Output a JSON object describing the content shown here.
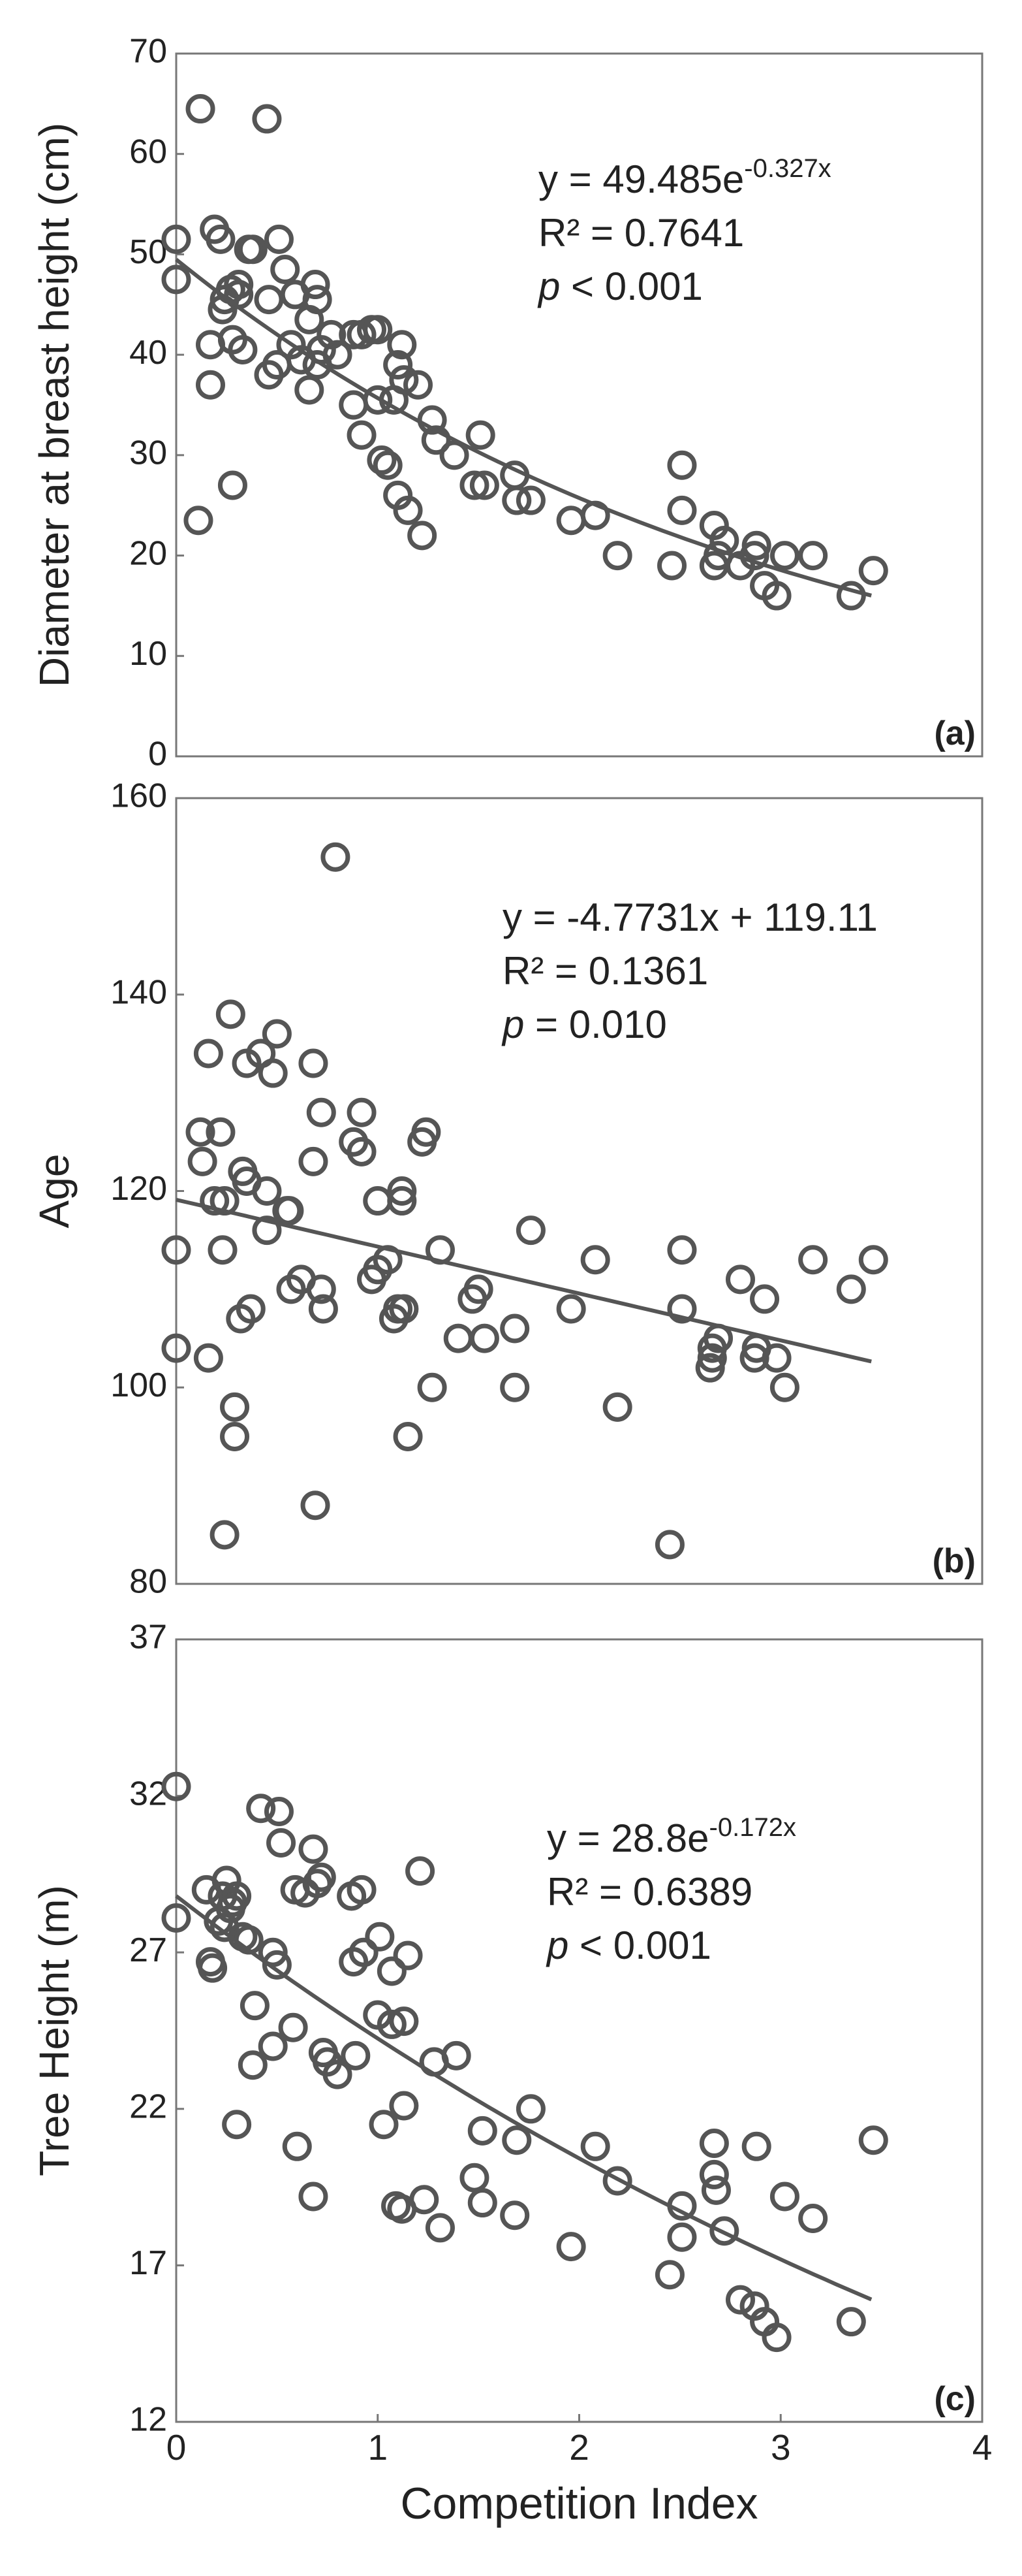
{
  "chart_data": [
    {
      "type": "scatter",
      "panel_label": "(a)",
      "ylabel": "Diameter at breast height (cm)",
      "xlim": [
        0,
        4
      ],
      "ylim": [
        0,
        70
      ],
      "yticks": [
        0,
        10,
        20,
        30,
        40,
        50,
        60,
        70
      ],
      "color": "#555555",
      "fit": {
        "kind": "exp",
        "a": 49.485,
        "b": -0.327,
        "xrange": [
          0,
          3.45
        ]
      },
      "equation": {
        "text": "y = 49.485e",
        "sup": "-0.327x"
      },
      "r2": "R² = 0.7641",
      "p": {
        "symbol": "p",
        "text": " < 0.001"
      },
      "x": [
        0.0,
        0.0,
        0.12,
        0.11,
        0.17,
        0.17,
        0.19,
        0.22,
        0.23,
        0.24,
        0.27,
        0.28,
        0.28,
        0.31,
        0.31,
        0.33,
        0.36,
        0.38,
        0.45,
        0.46,
        0.46,
        0.5,
        0.51,
        0.54,
        0.57,
        0.59,
        0.62,
        0.66,
        0.66,
        0.69,
        0.7,
        0.7,
        0.72,
        0.77,
        0.8,
        0.88,
        0.88,
        0.92,
        0.92,
        0.97,
        1.0,
        1.0,
        1.02,
        1.05,
        1.08,
        1.1,
        1.1,
        1.12,
        1.13,
        1.15,
        1.2,
        1.22,
        1.27,
        1.29,
        1.38,
        1.48,
        1.51,
        1.53,
        1.68,
        1.69,
        1.76,
        1.96,
        2.08,
        2.19,
        2.46,
        2.51,
        2.51,
        2.67,
        2.67,
        2.69,
        2.72,
        2.8,
        2.87,
        2.88,
        2.92,
        2.98,
        3.02,
        3.16,
        3.35,
        3.46
      ],
      "values": [
        51.5,
        47.5,
        64.5,
        23.5,
        41,
        37,
        52.5,
        51.5,
        44.5,
        45.5,
        46.5,
        27,
        41.5,
        47,
        46,
        40.5,
        50.5,
        50.5,
        63.5,
        45.5,
        38,
        39,
        51.5,
        48.5,
        41,
        46,
        39.5,
        43.5,
        36.5,
        47,
        45.5,
        39,
        40.5,
        42,
        40,
        35,
        42,
        32,
        42,
        42.5,
        35.5,
        42.5,
        29.5,
        29,
        35.5,
        26,
        39,
        41,
        37.5,
        24.5,
        37,
        22,
        33.5,
        31.5,
        30,
        27,
        32,
        27,
        28,
        25.5,
        25.5,
        23.5,
        24,
        20,
        19,
        29,
        24.5,
        23,
        19,
        20,
        21.5,
        19,
        20,
        21,
        17,
        16,
        20,
        20,
        16,
        18.5
      ]
    },
    {
      "type": "scatter",
      "panel_label": "(b)",
      "ylabel": "Age",
      "xlim": [
        0,
        4
      ],
      "ylim": [
        80,
        160
      ],
      "yticks": [
        80,
        100,
        120,
        140,
        160
      ],
      "color": "#555555",
      "fit": {
        "kind": "linear",
        "a": 119.11,
        "b": -4.7731,
        "xrange": [
          0,
          3.45
        ]
      },
      "equation": {
        "text": "y = -4.7731x + 119.11"
      },
      "r2": "R² = 0.1361",
      "p": {
        "symbol": "p",
        "text": " = 0.010"
      },
      "x": [
        0.0,
        0.0,
        0.12,
        0.13,
        0.16,
        0.16,
        0.19,
        0.22,
        0.23,
        0.24,
        0.24,
        0.27,
        0.29,
        0.29,
        0.32,
        0.33,
        0.35,
        0.35,
        0.37,
        0.42,
        0.45,
        0.45,
        0.48,
        0.5,
        0.55,
        0.56,
        0.57,
        0.62,
        0.68,
        0.68,
        0.69,
        0.72,
        0.72,
        0.73,
        0.79,
        0.88,
        0.92,
        0.92,
        0.97,
        1.0,
        1.0,
        1.05,
        1.08,
        1.1,
        1.12,
        1.12,
        1.13,
        1.15,
        1.22,
        1.24,
        1.27,
        1.31,
        1.4,
        1.47,
        1.5,
        1.53,
        1.68,
        1.68,
        1.76,
        1.96,
        2.08,
        2.19,
        2.45,
        2.51,
        2.51,
        2.65,
        2.66,
        2.66,
        2.69,
        2.8,
        2.87,
        2.88,
        2.92,
        2.98,
        3.02,
        3.16,
        3.35,
        3.46
      ],
      "values": [
        114,
        104,
        126,
        123,
        134,
        103,
        119,
        126,
        114,
        119,
        85,
        138,
        98,
        95,
        107,
        122,
        121,
        133,
        108,
        134,
        116,
        120,
        132,
        136,
        118,
        118,
        110,
        111,
        133,
        123,
        88,
        128,
        110,
        108,
        154,
        125,
        124,
        128,
        111,
        112,
        119,
        113,
        107,
        108,
        120,
        119,
        108,
        95,
        125,
        126,
        100,
        114,
        105,
        109,
        110,
        105,
        100,
        106,
        116,
        108,
        113,
        98,
        84,
        108,
        114,
        102,
        103,
        104,
        105,
        111,
        103,
        104,
        109,
        103,
        100,
        113,
        110,
        113
      ]
    },
    {
      "type": "scatter",
      "panel_label": "(c)",
      "ylabel": "Tree Height (m)",
      "xlabel": "Competition Index",
      "xlim": [
        0,
        4
      ],
      "xticks": [
        0,
        1,
        2,
        3,
        4
      ],
      "ylim": [
        12,
        37
      ],
      "yticks": [
        12,
        17,
        22,
        27,
        32,
        37
      ],
      "color": "#555555",
      "fit": {
        "kind": "exp",
        "a": 28.8,
        "b": -0.172,
        "xrange": [
          0,
          3.45
        ]
      },
      "equation": {
        "text": "y = 28.8e",
        "sup": "-0.172x"
      },
      "r2": "R² = 0.6389",
      "p": {
        "symbol": "p",
        "text": " < 0.001"
      },
      "x": [
        0.0,
        0.0,
        0.15,
        0.17,
        0.18,
        0.21,
        0.23,
        0.24,
        0.25,
        0.27,
        0.28,
        0.3,
        0.3,
        0.33,
        0.36,
        0.38,
        0.39,
        0.42,
        0.48,
        0.48,
        0.5,
        0.51,
        0.52,
        0.58,
        0.59,
        0.6,
        0.64,
        0.68,
        0.68,
        0.7,
        0.72,
        0.73,
        0.75,
        0.8,
        0.87,
        0.88,
        0.89,
        0.92,
        0.93,
        1.0,
        1.01,
        1.03,
        1.07,
        1.07,
        1.09,
        1.12,
        1.13,
        1.13,
        1.15,
        1.21,
        1.23,
        1.28,
        1.31,
        1.39,
        1.48,
        1.52,
        1.52,
        1.68,
        1.69,
        1.76,
        1.96,
        2.08,
        2.19,
        2.45,
        2.51,
        2.51,
        2.67,
        2.67,
        2.68,
        2.72,
        2.8,
        2.87,
        2.88,
        2.92,
        2.98,
        3.02,
        3.16,
        3.35,
        3.46
      ],
      "values": [
        32.3,
        28.1,
        29,
        26.7,
        26.5,
        28,
        28.8,
        27.8,
        29.3,
        28.4,
        28.6,
        28.8,
        21.5,
        27.5,
        27.4,
        23.4,
        25.3,
        31.6,
        27,
        24,
        26.6,
        31.5,
        30.5,
        24.6,
        29,
        20.8,
        28.9,
        30.3,
        19.2,
        29.2,
        29.4,
        23.8,
        23.5,
        23.1,
        28.8,
        26.7,
        23.7,
        29,
        27,
        25,
        27.5,
        21.5,
        26.4,
        24.7,
        18.9,
        18.8,
        22.1,
        24.8,
        26.9,
        29.6,
        19.1,
        23.5,
        18.2,
        23.7,
        19.8,
        21.3,
        19,
        18.6,
        21,
        22,
        17.6,
        20.8,
        19.7,
        16.7,
        18.9,
        17.9,
        20.9,
        19.9,
        19.4,
        18.1,
        15.9,
        15.7,
        20.8,
        15.2,
        14.7,
        19.2,
        18.5,
        15.2,
        21
      ]
    }
  ]
}
